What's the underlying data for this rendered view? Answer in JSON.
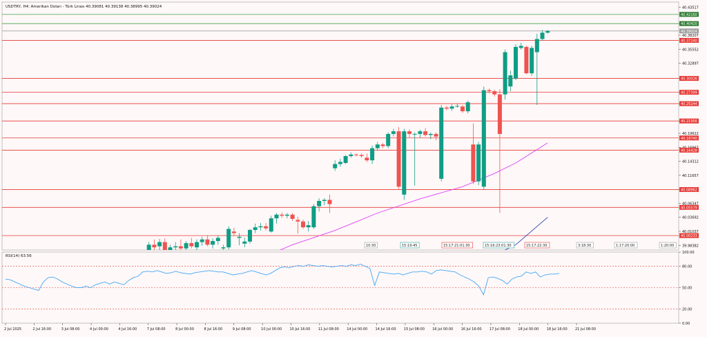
{
  "colors": {
    "background": "#fef8f8",
    "bull": "#0f9d84",
    "bear": "#ef5350",
    "support_line": "#e53935",
    "resistance_line": "#43a047",
    "current_price_line": "#9e9e9e",
    "ma_fast": "#e040fb",
    "ma_slow": "#3f51b5",
    "rsi_line": "#42a5f5",
    "rsi_level": "#e53935",
    "tag_red": "#e53935",
    "tag_green": "#2e7d32",
    "tag_gray": "#9e9e9e",
    "marker_red": "#e53935",
    "marker_teal": "#26a69a"
  },
  "chart_data": [
    {
      "type": "candlestick",
      "title": "USDTRY, H4:  Amerikan Doları - Türk Lirası  40.39081 40.39138 40.38995 40.39024",
      "ylim": [
        39.975,
        40.445
      ],
      "y_ticks": [
        "40.43517",
        "40.40420",
        "40.38207",
        "40.35552",
        "40.32897",
        "40.30026",
        "40.27399",
        "40.25244",
        "40.21956",
        "40.19622",
        "40.16967",
        "40.14312",
        "40.11657",
        "40.09002",
        "40.06347",
        "40.03692",
        "40.01037",
        "39.98382"
      ],
      "x_labels": [
        "2 Jul 2025",
        "2 Jul 16:00",
        "3 Jul 08:00",
        "4 Jul 00:00",
        "4 Jul 16:00",
        "7 Jul 08:00",
        "8 Jul 00:00",
        "8 Jul 16:00",
        "9 Jul 08:00",
        "10 Jul 00:00",
        "10 Jul 16:00",
        "11 Jul 08:00",
        "14 Jul 00:00",
        "14 Jul 16:00",
        "15 Jul 08:00",
        "16 Jul 00:00",
        "16 Jul 16:00",
        "17 Jul 08:00",
        "18 Jul 00:00",
        "18 Jul 16:00",
        "21 Jul 08:00"
      ],
      "horizontal_lines": [
        {
          "price": 40.4216,
          "label": "40.42160",
          "kind": "resistance"
        },
        {
          "price": 40.4042,
          "label": "40.40420",
          "kind": "resistance"
        },
        {
          "price": 40.39024,
          "label": "40.39024",
          "kind": "current"
        },
        {
          "price": 40.3724,
          "label": "40.37240",
          "kind": "support"
        },
        {
          "price": 40.30026,
          "label": "40.30026",
          "kind": "support"
        },
        {
          "price": 40.27399,
          "label": "40.27399",
          "kind": "support"
        },
        {
          "price": 40.25244,
          "label": "40.25244",
          "kind": "support"
        },
        {
          "price": 40.21956,
          "label": "40.21956",
          "kind": "support"
        },
        {
          "price": 40.1874,
          "label": "40.18740",
          "kind": "support"
        },
        {
          "price": 40.16428,
          "label": "40.16428",
          "kind": "support"
        },
        {
          "price": 40.08962,
          "label": "40.08962",
          "kind": "support"
        },
        {
          "price": 40.05579,
          "label": "40.05579",
          "kind": "support"
        },
        {
          "price": 40.00233,
          "label": "40.00233",
          "kind": "support"
        }
      ],
      "candles": [
        {
          "o": 39.95,
          "h": 39.975,
          "l": 39.93,
          "c": 39.97
        },
        {
          "o": 39.973,
          "h": 39.99,
          "l": 39.96,
          "c": 39.985
        },
        {
          "o": 39.985,
          "h": 39.995,
          "l": 39.972,
          "c": 39.98
        },
        {
          "o": 39.982,
          "h": 39.996,
          "l": 39.975,
          "c": 39.99
        },
        {
          "o": 39.99,
          "h": 39.997,
          "l": 39.955,
          "c": 39.958
        },
        {
          "o": 39.958,
          "h": 39.985,
          "l": 39.95,
          "c": 39.98
        },
        {
          "o": 39.98,
          "h": 39.99,
          "l": 39.97,
          "c": 39.982
        },
        {
          "o": 39.982,
          "h": 39.995,
          "l": 39.975,
          "c": 39.978
        },
        {
          "o": 39.978,
          "h": 39.992,
          "l": 39.968,
          "c": 39.988
        },
        {
          "o": 39.988,
          "h": 39.998,
          "l": 39.978,
          "c": 39.982
        },
        {
          "o": 39.98,
          "h": 39.995,
          "l": 39.97,
          "c": 39.99
        },
        {
          "o": 39.99,
          "h": 40.0,
          "l": 39.983,
          "c": 39.995
        },
        {
          "o": 39.995,
          "h": 40.002,
          "l": 39.982,
          "c": 39.985
        },
        {
          "o": 39.985,
          "h": 39.997,
          "l": 39.978,
          "c": 39.992
        },
        {
          "o": 39.992,
          "h": 40.002,
          "l": 39.985,
          "c": 39.998
        },
        {
          "o": 39.978,
          "h": 39.985,
          "l": 39.97,
          "c": 39.98
        },
        {
          "o": 39.98,
          "h": 40.02,
          "l": 39.976,
          "c": 40.015
        },
        {
          "o": 40.01,
          "h": 40.017,
          "l": 40.001,
          "c": 40.007
        },
        {
          "o": 39.998,
          "h": 40.007,
          "l": 39.984,
          "c": 40.0
        },
        {
          "o": 39.987,
          "h": 39.998,
          "l": 39.98,
          "c": 39.991
        },
        {
          "o": 39.991,
          "h": 40.015,
          "l": 39.987,
          "c": 40.013
        },
        {
          "o": 40.013,
          "h": 40.025,
          "l": 40.007,
          "c": 40.018
        },
        {
          "o": 40.018,
          "h": 40.026,
          "l": 40.012,
          "c": 40.02
        },
        {
          "o": 40.02,
          "h": 40.026,
          "l": 40.012,
          "c": 40.016
        },
        {
          "o": 40.01,
          "h": 40.04,
          "l": 40.008,
          "c": 40.035
        },
        {
          "o": 40.035,
          "h": 40.045,
          "l": 40.025,
          "c": 40.042
        },
        {
          "o": 40.042,
          "h": 40.046,
          "l": 40.036,
          "c": 40.04
        },
        {
          "o": 40.04,
          "h": 40.045,
          "l": 40.035,
          "c": 40.042
        },
        {
          "o": 40.042,
          "h": 40.045,
          "l": 40.03,
          "c": 40.034
        },
        {
          "o": 40.032,
          "h": 40.038,
          "l": 40.006,
          "c": 40.029
        },
        {
          "o": 40.029,
          "h": 40.033,
          "l": 40.015,
          "c": 40.018
        },
        {
          "o": 40.018,
          "h": 40.03,
          "l": 40.01,
          "c": 40.022
        },
        {
          "o": 40.018,
          "h": 40.062,
          "l": 40.015,
          "c": 40.058
        },
        {
          "o": 40.058,
          "h": 40.073,
          "l": 40.048,
          "c": 40.068
        },
        {
          "o": 40.068,
          "h": 40.073,
          "l": 40.06,
          "c": 40.07
        },
        {
          "o": 40.07,
          "h": 40.08,
          "l": 40.045,
          "c": 40.062
        },
        {
          "o": 40.13,
          "h": 40.145,
          "l": 40.125,
          "c": 40.138
        },
        {
          "o": 40.138,
          "h": 40.148,
          "l": 40.133,
          "c": 40.142
        },
        {
          "o": 40.14,
          "h": 40.155,
          "l": 40.138,
          "c": 40.153
        },
        {
          "o": 40.153,
          "h": 40.16,
          "l": 40.15,
          "c": 40.156
        },
        {
          "o": 40.156,
          "h": 40.158,
          "l": 40.152,
          "c": 40.155
        },
        {
          "o": 40.155,
          "h": 40.158,
          "l": 40.15,
          "c": 40.153
        },
        {
          "o": 40.15,
          "h": 40.158,
          "l": 40.142,
          "c": 40.145
        },
        {
          "o": 40.145,
          "h": 40.173,
          "l": 40.138,
          "c": 40.168
        },
        {
          "o": 40.168,
          "h": 40.18,
          "l": 40.164,
          "c": 40.175
        },
        {
          "o": 40.175,
          "h": 40.178,
          "l": 40.168,
          "c": 40.172
        },
        {
          "o": 40.172,
          "h": 40.198,
          "l": 40.168,
          "c": 40.195
        },
        {
          "o": 40.195,
          "h": 40.205,
          "l": 40.19,
          "c": 40.2
        },
        {
          "o": 40.2,
          "h": 40.208,
          "l": 40.09,
          "c": 40.095
        },
        {
          "o": 40.08,
          "h": 40.205,
          "l": 40.07,
          "c": 40.2
        },
        {
          "o": 40.2,
          "h": 40.204,
          "l": 40.188,
          "c": 40.195
        },
        {
          "o": 40.195,
          "h": 40.198,
          "l": 40.097,
          "c": 40.195
        },
        {
          "o": 40.195,
          "h": 40.203,
          "l": 40.188,
          "c": 40.2
        },
        {
          "o": 40.2,
          "h": 40.206,
          "l": 40.19,
          "c": 40.193
        },
        {
          "o": 40.193,
          "h": 40.198,
          "l": 40.185,
          "c": 40.195
        },
        {
          "o": 40.195,
          "h": 40.198,
          "l": 40.183,
          "c": 40.19
        },
        {
          "o": 40.11,
          "h": 40.25,
          "l": 40.105,
          "c": 40.245
        },
        {
          "o": 40.245,
          "h": 40.248,
          "l": 40.24,
          "c": 40.243
        },
        {
          "o": 40.243,
          "h": 40.251,
          "l": 40.239,
          "c": 40.247
        },
        {
          "o": 40.247,
          "h": 40.252,
          "l": 40.245,
          "c": 40.248
        },
        {
          "o": 40.247,
          "h": 40.25,
          "l": 40.235,
          "c": 40.238
        },
        {
          "o": 40.238,
          "h": 40.258,
          "l": 40.234,
          "c": 40.255
        },
        {
          "o": 40.175,
          "h": 40.215,
          "l": 40.1,
          "c": 40.105
        },
        {
          "o": 40.105,
          "h": 40.18,
          "l": 40.098,
          "c": 40.175
        },
        {
          "o": 40.095,
          "h": 40.285,
          "l": 40.09,
          "c": 40.278
        },
        {
          "o": 40.278,
          "h": 40.281,
          "l": 40.272,
          "c": 40.276
        },
        {
          "o": 40.276,
          "h": 40.279,
          "l": 40.266,
          "c": 40.27
        },
        {
          "o": 40.27,
          "h": 40.28,
          "l": 40.045,
          "c": 40.195
        },
        {
          "o": 40.27,
          "h": 40.355,
          "l": 40.26,
          "c": 40.35
        },
        {
          "o": 40.285,
          "h": 40.315,
          "l": 40.276,
          "c": 40.306
        },
        {
          "o": 40.3,
          "h": 40.365,
          "l": 40.297,
          "c": 40.36
        },
        {
          "o": 40.358,
          "h": 40.368,
          "l": 40.355,
          "c": 40.362
        },
        {
          "o": 40.36,
          "h": 40.362,
          "l": 40.308,
          "c": 40.31
        },
        {
          "o": 40.31,
          "h": 40.362,
          "l": 40.305,
          "c": 40.358
        },
        {
          "o": 40.35,
          "h": 40.385,
          "l": 40.25,
          "c": 40.375
        },
        {
          "o": 40.375,
          "h": 40.392,
          "l": 40.372,
          "c": 40.387
        },
        {
          "o": 40.387,
          "h": 40.392,
          "l": 40.385,
          "c": 40.39
        }
      ],
      "ma_fast": [
        {
          "i": 0,
          "v": 39.88
        },
        {
          "i": 10,
          "v": 39.92
        },
        {
          "i": 20,
          "v": 39.95
        },
        {
          "i": 28,
          "v": 39.985
        },
        {
          "i": 36,
          "v": 40.012
        },
        {
          "i": 44,
          "v": 40.045
        },
        {
          "i": 52,
          "v": 40.072
        },
        {
          "i": 60,
          "v": 40.095
        },
        {
          "i": 66,
          "v": 40.12
        },
        {
          "i": 70,
          "v": 40.14
        },
        {
          "i": 76,
          "v": 40.178
        }
      ],
      "ma_slow": [
        {
          "i": 0,
          "v": 39.8
        },
        {
          "i": 40,
          "v": 39.85
        },
        {
          "i": 60,
          "v": 39.9
        },
        {
          "i": 66,
          "v": 39.965
        },
        {
          "i": 70,
          "v": 39.985
        },
        {
          "i": 76,
          "v": 40.037
        }
      ]
    },
    {
      "type": "line",
      "title": "RSI(14) 63.56",
      "ylim": [
        0,
        100
      ],
      "levels": [
        80,
        50,
        20
      ],
      "y_ticks": [
        "100.00",
        "80.00",
        "50.00",
        "20.00",
        "0.00"
      ],
      "values": [
        62,
        61,
        58,
        55,
        52,
        50,
        48,
        46,
        58,
        64,
        65,
        62,
        58,
        55,
        52,
        50,
        50,
        52,
        50,
        54,
        56,
        58,
        55,
        58,
        56,
        54,
        60,
        64,
        66,
        72,
        73,
        72,
        74,
        72,
        70,
        71,
        73,
        71,
        70,
        69,
        71,
        72,
        73,
        74,
        73,
        72,
        72,
        70,
        68,
        69,
        70,
        72,
        74,
        72,
        70,
        68,
        70,
        74,
        78,
        79,
        78,
        80,
        81,
        80,
        82,
        81,
        80,
        81,
        80,
        79,
        80,
        81,
        80,
        82,
        81,
        83,
        80,
        77,
        53,
        72,
        71,
        70,
        69,
        70,
        68,
        70,
        72,
        72,
        73,
        72,
        69,
        74,
        75,
        74,
        73,
        72,
        68,
        65,
        62,
        58,
        52,
        40,
        64,
        65,
        63,
        60,
        55,
        62,
        65,
        66,
        72,
        70,
        72,
        65,
        68,
        69,
        69,
        70
      ]
    }
  ],
  "markers": [
    {
      "label": "10:30",
      "color": "gray"
    },
    {
      "label": "15:19:45",
      "color": "teal"
    },
    {
      "label": "15:17:21:01:30",
      "color": "red"
    },
    {
      "label": "15:16:23:01:30",
      "color": "teal"
    },
    {
      "label": "15:17:22:30",
      "color": "red"
    },
    {
      "label": "3:18:30",
      "color": "gray"
    },
    {
      "label": "1:17:20:00",
      "color": "gray"
    },
    {
      "label": "1:20:00",
      "color": "gray"
    }
  ]
}
